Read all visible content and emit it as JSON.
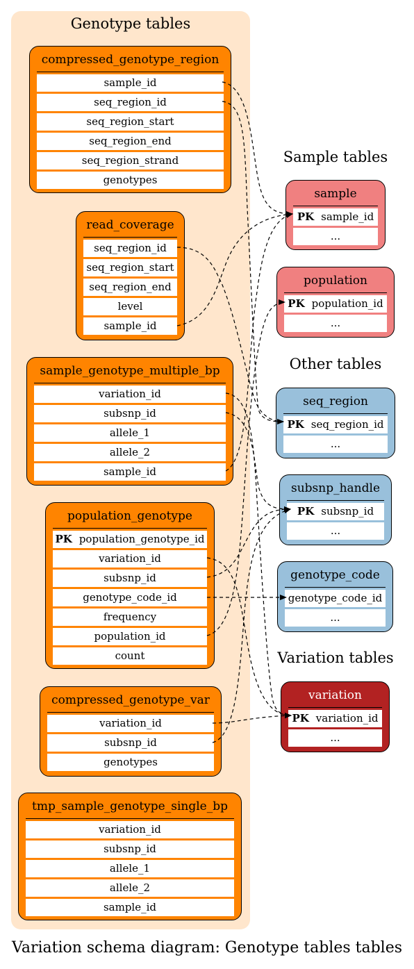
{
  "clusters": {
    "genotype": {
      "title": "Genotype tables"
    },
    "sample": {
      "title": "Sample tables"
    },
    "other": {
      "title": "Other tables"
    },
    "variation": {
      "title": "Variation tables"
    }
  },
  "tables": {
    "compressed_genotype_region": {
      "name": "compressed_genotype_region",
      "color": "#ff8400",
      "columns": [
        "sample_id",
        "seq_region_id",
        "seq_region_start",
        "seq_region_end",
        "seq_region_strand",
        "genotypes"
      ]
    },
    "read_coverage": {
      "name": "read_coverage",
      "color": "#ff8400",
      "columns": [
        "seq_region_id",
        "seq_region_start",
        "seq_region_end",
        "level",
        "sample_id"
      ]
    },
    "sample_genotype_multiple_bp": {
      "name": "sample_genotype_multiple_bp",
      "color": "#ff8400",
      "columns": [
        "variation_id",
        "subsnp_id",
        "allele_1",
        "allele_2",
        "sample_id"
      ]
    },
    "population_genotype": {
      "name": "population_genotype",
      "color": "#ff8400",
      "pk": {
        "label": "PK",
        "name": "population_genotype_id"
      },
      "columns": [
        "variation_id",
        "subsnp_id",
        "genotype_code_id",
        "frequency",
        "population_id",
        "count"
      ]
    },
    "compressed_genotype_var": {
      "name": "compressed_genotype_var",
      "color": "#ff8400",
      "columns": [
        "variation_id",
        "subsnp_id",
        "genotypes"
      ]
    },
    "tmp_sample_genotype_single_bp": {
      "name": "tmp_sample_genotype_single_bp",
      "color": "#ff8400",
      "columns": [
        "variation_id",
        "subsnp_id",
        "allele_1",
        "allele_2",
        "sample_id"
      ]
    },
    "sample": {
      "name": "sample",
      "color": "#f08080",
      "pk": {
        "label": "PK",
        "name": "sample_id"
      },
      "more": "..."
    },
    "population": {
      "name": "population",
      "color": "#f08080",
      "pk": {
        "label": "PK",
        "name": "population_id"
      },
      "more": "..."
    },
    "seq_region": {
      "name": "seq_region",
      "color": "#99c0db",
      "pk": {
        "label": "PK",
        "name": "seq_region_id"
      },
      "more": "..."
    },
    "subsnp_handle": {
      "name": "subsnp_handle",
      "color": "#99c0db",
      "pk": {
        "label": "PK",
        "name": "subsnp_id"
      },
      "more": "..."
    },
    "genotype_code": {
      "name": "genotype_code",
      "color": "#99c0db",
      "key": "genotype_code_id",
      "more": "..."
    },
    "variation": {
      "name": "variation",
      "color": "#b22222",
      "pk": {
        "label": "PK",
        "name": "variation_id"
      },
      "more": "..."
    }
  },
  "relations": [
    {
      "from": "compressed_genotype_region.sample_id",
      "to": "sample.sample_id"
    },
    {
      "from": "compressed_genotype_region.seq_region_id",
      "to": "seq_region.seq_region_id"
    },
    {
      "from": "read_coverage.seq_region_id",
      "to": "seq_region.seq_region_id"
    },
    {
      "from": "read_coverage.sample_id",
      "to": "sample.sample_id"
    },
    {
      "from": "sample_genotype_multiple_bp.variation_id",
      "to": "variation.variation_id"
    },
    {
      "from": "sample_genotype_multiple_bp.subsnp_id",
      "to": "subsnp_handle.subsnp_id"
    },
    {
      "from": "sample_genotype_multiple_bp.sample_id",
      "to": "sample.sample_id"
    },
    {
      "from": "population_genotype.variation_id",
      "to": "variation.variation_id"
    },
    {
      "from": "population_genotype.subsnp_id",
      "to": "subsnp_handle.subsnp_id"
    },
    {
      "from": "population_genotype.genotype_code_id",
      "to": "genotype_code.genotype_code_id"
    },
    {
      "from": "population_genotype.population_id",
      "to": "population.population_id"
    },
    {
      "from": "compressed_genotype_var.variation_id",
      "to": "variation.variation_id"
    },
    {
      "from": "compressed_genotype_var.subsnp_id",
      "to": "subsnp_handle.subsnp_id"
    }
  ],
  "caption": "Variation schema diagram: Genotype tables tables"
}
